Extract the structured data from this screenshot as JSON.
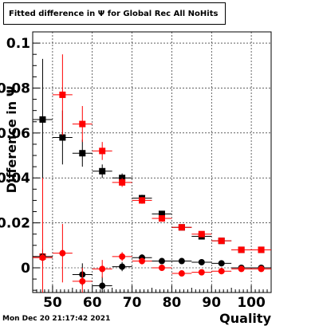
{
  "title": "Fitted difference in Ψ  for Global Rec All NoHits",
  "timestamp": "Mon Dec 20 21:17:42 2021",
  "chart_data": {
    "type": "scatter",
    "title": "Fitted difference in Ψ  for Global Rec All NoHits",
    "xlabel": "Quality",
    "ylabel": "Difference in Ψ",
    "xlim": [
      45,
      105
    ],
    "ylim": [
      -0.011,
      0.105
    ],
    "x_ticks": [
      50,
      60,
      70,
      80,
      90,
      100
    ],
    "x_tick_labels": [
      "50",
      "60",
      "70",
      "80",
      "90",
      "100"
    ],
    "y_ticks": [
      0,
      0.02,
      0.04,
      0.06,
      0.08,
      0.1
    ],
    "y_tick_labels": [
      "0",
      "0.02",
      "0.04",
      "0.06",
      "0.08",
      "0.1"
    ],
    "grid": true,
    "bin_half_width": 2.5,
    "series": [
      {
        "color": "#000000",
        "marker": "square",
        "x": [
          47.5,
          52.5,
          57.5,
          62.5,
          67.5,
          72.5,
          77.5,
          82.5,
          87.5,
          92.5,
          97.5,
          102.5
        ],
        "y": [
          0.066,
          0.058,
          0.051,
          0.043,
          0.04,
          0.031,
          0.024,
          0.018,
          0.014,
          0.012,
          0.008,
          0.008
        ],
        "yerr": [
          0.027,
          0.012,
          0.006,
          0.003,
          0.002,
          0.0015,
          0.001,
          0.001,
          0.001,
          0.001,
          0.001,
          0.001
        ]
      },
      {
        "color": "#ff0000",
        "marker": "square",
        "x": [
          47.5,
          52.5,
          57.5,
          62.5,
          67.5,
          72.5,
          77.5,
          82.5,
          87.5,
          92.5,
          97.5,
          102.5
        ],
        "y": [
          0.005,
          0.077,
          0.064,
          0.052,
          0.038,
          0.03,
          0.022,
          0.018,
          0.015,
          0.012,
          0.008,
          0.008
        ],
        "yerr": [
          0.035,
          0.018,
          0.008,
          0.004,
          0.002,
          0.0015,
          0.001,
          0.001,
          0.001,
          0.001,
          0.001,
          0.001
        ]
      },
      {
        "color": "#000000",
        "marker": "circle",
        "x": [
          47.5,
          57.5,
          62.5,
          67.5,
          72.5,
          77.5,
          82.5,
          87.5,
          92.5,
          97.5,
          102.5
        ],
        "y": [
          0.005,
          -0.003,
          -0.008,
          0.0005,
          0.0045,
          0.003,
          0.003,
          0.0025,
          0.002,
          0.0,
          0.0
        ],
        "yerr": [
          0.003,
          0.005,
          0.004,
          0.002,
          0.0015,
          0.001,
          0.001,
          0.001,
          0.001,
          0.001,
          0.001
        ]
      },
      {
        "color": "#ff0000",
        "marker": "circle",
        "x": [
          47.5,
          52.5,
          57.5,
          62.5,
          67.5,
          72.5,
          77.5,
          82.5,
          87.5,
          92.5,
          97.5,
          102.5
        ],
        "y": [
          0.0045,
          0.0065,
          -0.006,
          -0.0005,
          0.005,
          0.003,
          0.0,
          -0.0025,
          -0.002,
          -0.0015,
          -0.0005,
          -0.0005
        ],
        "yerr": [
          0.004,
          0.013,
          0.006,
          0.004,
          0.002,
          0.0015,
          0.001,
          0.001,
          0.001,
          0.001,
          0.001,
          0.001
        ]
      }
    ]
  }
}
